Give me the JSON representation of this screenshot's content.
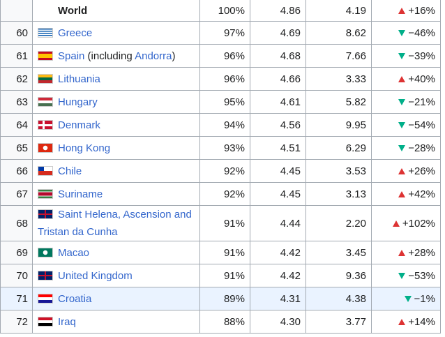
{
  "table": {
    "rows": [
      {
        "country": "World",
        "share": "100%",
        "a": "4.86",
        "b": "4.19",
        "change": "+16%",
        "trend": "up"
      },
      {
        "rank": 60,
        "country": "Greece",
        "share": "97%",
        "a": "4.69",
        "b": "8.62",
        "change": "−46%",
        "trend": "down"
      },
      {
        "rank": 61,
        "country": "Spain",
        "extra": [
          " (including ",
          "Andorra",
          ")"
        ],
        "share": "96%",
        "a": "4.68",
        "b": "7.66",
        "change": "−39%",
        "trend": "down"
      },
      {
        "rank": 62,
        "country": "Lithuania",
        "share": "96%",
        "a": "4.66",
        "b": "3.33",
        "change": "+40%",
        "trend": "up"
      },
      {
        "rank": 63,
        "country": "Hungary",
        "share": "95%",
        "a": "4.61",
        "b": "5.82",
        "change": "−21%",
        "trend": "down"
      },
      {
        "rank": 64,
        "country": "Denmark",
        "share": "94%",
        "a": "4.56",
        "b": "9.95",
        "change": "−54%",
        "trend": "down"
      },
      {
        "rank": 65,
        "country": "Hong Kong",
        "share": "93%",
        "a": "4.51",
        "b": "6.29",
        "change": "−28%",
        "trend": "down"
      },
      {
        "rank": 66,
        "country": "Chile",
        "share": "92%",
        "a": "4.45",
        "b": "3.53",
        "change": "+26%",
        "trend": "up"
      },
      {
        "rank": 67,
        "country": "Suriname",
        "share": "92%",
        "a": "4.45",
        "b": "3.13",
        "change": "+42%",
        "trend": "up"
      },
      {
        "rank": 68,
        "country": "Saint Helena, Ascension and Tristan da Cunha",
        "share": "91%",
        "a": "4.44",
        "b": "2.20",
        "change": "+102%",
        "trend": "up"
      },
      {
        "rank": 69,
        "country": "Macao",
        "share": "91%",
        "a": "4.42",
        "b": "3.45",
        "change": "+28%",
        "trend": "up"
      },
      {
        "rank": 70,
        "country": "United Kingdom",
        "share": "91%",
        "a": "4.42",
        "b": "9.36",
        "change": "−53%",
        "trend": "down"
      },
      {
        "rank": 71,
        "country": "Croatia",
        "share": "89%",
        "a": "4.31",
        "b": "4.38",
        "change": "−1%",
        "trend": "down",
        "highlight": true
      },
      {
        "rank": 72,
        "country": "Iraq",
        "share": "88%",
        "a": "4.30",
        "b": "3.77",
        "change": "+14%",
        "trend": "up"
      }
    ]
  }
}
